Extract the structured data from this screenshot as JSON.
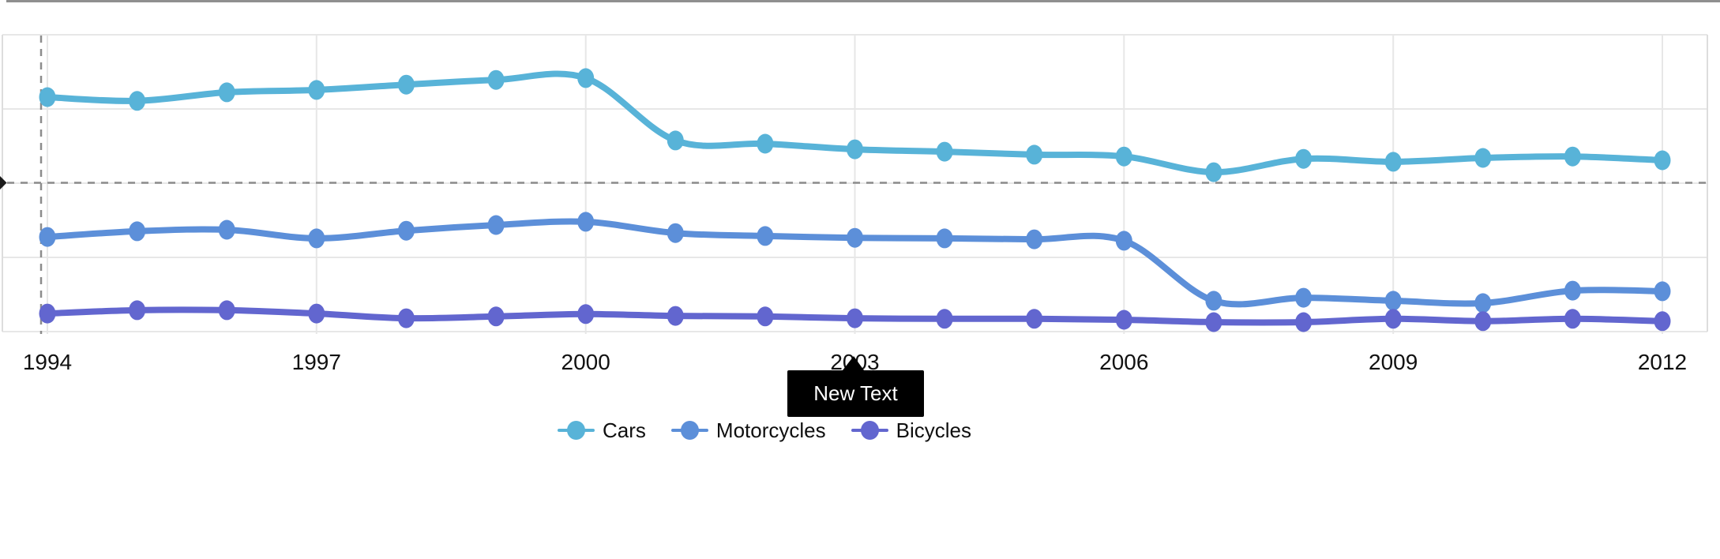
{
  "chart_data": {
    "type": "line",
    "smooth": true,
    "title": "",
    "xlabel": "",
    "ylabel": "",
    "x": [
      1994,
      1995,
      1996,
      1997,
      1998,
      1999,
      2000,
      2001,
      2002,
      2003,
      2004,
      2005,
      2006,
      2007,
      2008,
      2009,
      2010,
      2011,
      2012
    ],
    "x_tick_labels": [
      "1994",
      "1997",
      "2000",
      "2003",
      "2006",
      "2009",
      "2012"
    ],
    "x_tick_years": [
      1994,
      1997,
      2000,
      2003,
      2006,
      2009,
      2012
    ],
    "ylim": [
      0,
      100
    ],
    "y_gridline_values": [
      0,
      25,
      50,
      75,
      100
    ],
    "grid": true,
    "legend_position": "bottom",
    "series": [
      {
        "name": "Cars",
        "color": "#58b3d8",
        "values": [
          79.0,
          77.7,
          80.6,
          81.4,
          83.2,
          84.8,
          85.4,
          64.4,
          63.3,
          61.4,
          60.6,
          59.6,
          59.0,
          53.7,
          58.2,
          57.2,
          58.5,
          59.0,
          57.7
        ]
      },
      {
        "name": "Motorcycles",
        "color": "#5c8fd9",
        "values": [
          31.9,
          33.8,
          34.3,
          31.4,
          34.0,
          35.9,
          37.0,
          33.2,
          32.2,
          31.6,
          31.4,
          31.1,
          30.6,
          10.4,
          11.4,
          10.4,
          9.6,
          13.8,
          13.6
        ]
      },
      {
        "name": "Bicycles",
        "color": "#6266cf",
        "values": [
          6.1,
          7.2,
          7.2,
          6.1,
          4.5,
          5.1,
          5.9,
          5.3,
          5.1,
          4.5,
          4.3,
          4.3,
          4.0,
          3.2,
          3.2,
          4.3,
          3.5,
          4.3,
          3.5
        ]
      }
    ],
    "crosshair": {
      "y_value": 50,
      "x_year": 1994
    }
  },
  "annotation": {
    "label": "New Text",
    "bg_color": "#000000",
    "text_color": "#ffffff",
    "anchor_year": 2003
  },
  "colors": {
    "gridline": "#e7e7e7",
    "plot_border": "#dddddd",
    "crosshair_dash": "#8c8c8c",
    "crosshair_arrow": "#1a1a1a",
    "tick_label": "#111111",
    "top_border": "#8f8f8f"
  }
}
